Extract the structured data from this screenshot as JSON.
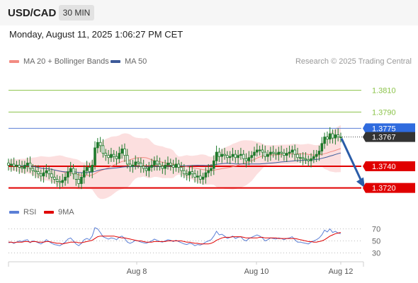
{
  "header": {
    "pair": "USD/CAD",
    "timeframe": "30 MIN"
  },
  "datetime": "Monday, August 11, 2025 1:06:27 PM CET",
  "credit": "Research © 2025 Trading Central",
  "legend": {
    "price": [
      {
        "label": "MA 20 + Bollinger Bands",
        "color": "#f28b82"
      },
      {
        "label": "MA 50",
        "color": "#3d5a99"
      }
    ],
    "rsi": [
      {
        "label": "RSI",
        "color": "#5b7fd6"
      },
      {
        "label": "9MA",
        "color": "#e00000"
      }
    ]
  },
  "colors": {
    "bollinger_fill": "#fbd9d9",
    "ma20": "#f28b82",
    "ma50": "#3d5a99",
    "resistance": "#8bc34a",
    "support": "#e00000",
    "pivot": "#5b7fd6",
    "current": "#333333",
    "arrow": "#2a5ca8",
    "candle": "#1e7a2c"
  },
  "chart_data": [
    {
      "type": "candlestick",
      "x_ticks": [
        "Aug 8",
        "Aug 10",
        "Aug 12"
      ],
      "ylim": [
        1.371,
        1.383
      ],
      "levels": [
        {
          "label": "1.3810",
          "value": 1.381,
          "kind": "resistance"
        },
        {
          "label": "1.3790",
          "value": 1.379,
          "kind": "resistance"
        },
        {
          "label": "1.3775",
          "value": 1.3775,
          "kind": "pivot"
        },
        {
          "label": "1.3767",
          "value": 1.3767,
          "kind": "current"
        },
        {
          "label": "1.3740",
          "value": 1.374,
          "kind": "support"
        },
        {
          "label": "1.3720",
          "value": 1.372,
          "kind": "support"
        }
      ],
      "forecast": {
        "from": 1.3767,
        "to": 1.372
      },
      "close": [
        1.3741,
        1.3742,
        1.374,
        1.3741,
        1.3739,
        1.3738,
        1.3741,
        1.3743,
        1.3738,
        1.3736,
        1.3735,
        1.3733,
        1.3731,
        1.3734,
        1.3736,
        1.3733,
        1.373,
        1.3728,
        1.3726,
        1.3725,
        1.3727,
        1.373,
        1.3735,
        1.3738,
        1.3733,
        1.3728,
        1.3724,
        1.373,
        1.3736,
        1.3739,
        1.3735,
        1.3741,
        1.3757,
        1.3762,
        1.3759,
        1.3752,
        1.375,
        1.3748,
        1.3751,
        1.3749,
        1.3747,
        1.3752,
        1.3756,
        1.375,
        1.3742,
        1.374,
        1.3741,
        1.3744,
        1.3743,
        1.374,
        1.3738,
        1.3736,
        1.3739,
        1.3741,
        1.3745,
        1.3742,
        1.374,
        1.3738,
        1.3741,
        1.3743,
        1.3741,
        1.3739,
        1.3742,
        1.3739,
        1.3736,
        1.3733,
        1.3732,
        1.3735,
        1.3733,
        1.373,
        1.3731,
        1.3728,
        1.373,
        1.3734,
        1.3736,
        1.3738,
        1.3745,
        1.3753,
        1.3749,
        1.3751,
        1.375,
        1.3748,
        1.3749,
        1.3751,
        1.3748,
        1.375,
        1.3751,
        1.3747,
        1.3745,
        1.3748,
        1.375,
        1.3753,
        1.3755,
        1.3755,
        1.3753,
        1.3749,
        1.3751,
        1.3753,
        1.3752,
        1.3751,
        1.3753,
        1.3752,
        1.375,
        1.3752,
        1.3753,
        1.3755,
        1.3751,
        1.3748,
        1.3748,
        1.3747,
        1.3746,
        1.3745,
        1.3747,
        1.3749,
        1.3751,
        1.3754,
        1.3761,
        1.3767,
        1.3765,
        1.377,
        1.3766,
        1.3769,
        1.3767,
        1.3767
      ]
    },
    {
      "type": "line",
      "series": [
        {
          "name": "RSI",
          "values": [
            47,
            48,
            46,
            48,
            50,
            49,
            51,
            52,
            47,
            50,
            49,
            47,
            45,
            48,
            52,
            49,
            46,
            44,
            43,
            42,
            45,
            48,
            53,
            55,
            50,
            45,
            42,
            46,
            52,
            54,
            52,
            58,
            72,
            70,
            64,
            57,
            55,
            53,
            55,
            54,
            52,
            56,
            58,
            54,
            48,
            46,
            48,
            51,
            50,
            48,
            47,
            46,
            48,
            50,
            53,
            51,
            49,
            48,
            50,
            52,
            51,
            49,
            51,
            49,
            47,
            45,
            44,
            46,
            45,
            42,
            44,
            43,
            45,
            48,
            50,
            52,
            58,
            66,
            60,
            61,
            58,
            54,
            56,
            58,
            54,
            56,
            57,
            52,
            50,
            54,
            56,
            58,
            60,
            58,
            55,
            50,
            52,
            55,
            54,
            53,
            55,
            54,
            52,
            54,
            55,
            57,
            52,
            48,
            48,
            47,
            46,
            45,
            48,
            50,
            52,
            55,
            60,
            68,
            65,
            70,
            64,
            66,
            63,
            62
          ]
        },
        {
          "name": "9MA",
          "values": [
            48,
            48,
            47,
            48,
            48,
            48,
            49,
            49,
            48,
            49,
            49,
            48,
            48,
            48,
            49,
            49,
            48,
            47,
            46,
            46,
            45,
            46,
            47,
            48,
            48,
            48,
            47,
            47,
            48,
            49,
            50,
            51,
            54,
            57,
            58,
            58,
            58,
            58,
            58,
            58,
            57,
            56,
            55,
            55,
            54,
            53,
            52,
            51,
            50,
            50,
            49,
            48,
            48,
            48,
            49,
            49,
            49,
            49,
            49,
            50,
            50,
            50,
            50,
            50,
            50,
            49,
            48,
            48,
            47,
            46,
            46,
            45,
            45,
            45,
            45,
            46,
            48,
            51,
            53,
            55,
            56,
            56,
            56,
            57,
            57,
            57,
            57,
            56,
            55,
            55,
            55,
            55,
            55,
            56,
            56,
            55,
            55,
            55,
            55,
            55,
            54,
            54,
            54,
            54,
            54,
            54,
            54,
            53,
            52,
            51,
            50,
            49,
            49,
            48,
            48,
            49,
            50,
            52,
            55,
            58,
            60,
            62,
            63,
            64
          ]
        }
      ],
      "y_ticks": [
        70,
        50,
        30
      ],
      "ylim": [
        20,
        80
      ]
    }
  ]
}
